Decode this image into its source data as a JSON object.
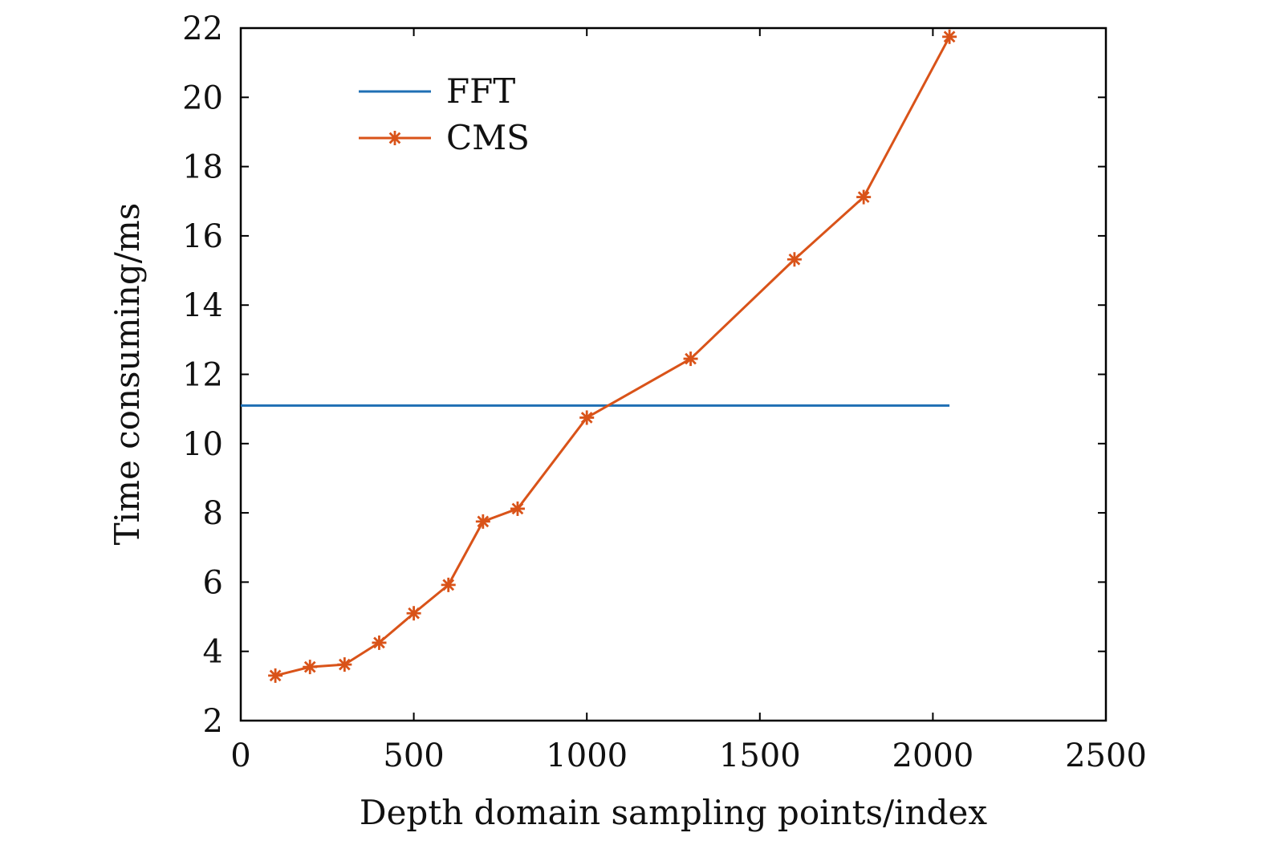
{
  "chart_data": {
    "type": "line",
    "title": "",
    "xlabel": "Depth domain sampling points/index",
    "ylabel": "Time consuming/ms",
    "xlim": [
      0,
      2500
    ],
    "ylim": [
      2,
      22
    ],
    "xticks": [
      0,
      500,
      1000,
      1500,
      2000,
      2500
    ],
    "yticks": [
      2,
      4,
      6,
      8,
      10,
      12,
      14,
      16,
      18,
      20,
      22
    ],
    "xtick_labels": [
      "0",
      "500",
      "1000",
      "1500",
      "2000",
      "2500"
    ],
    "ytick_labels": [
      "2",
      "4",
      "6",
      "8",
      "10",
      "12",
      "14",
      "16",
      "18",
      "20",
      "22"
    ],
    "grid": false,
    "legend_position": "upper-left",
    "series": [
      {
        "name": "FFT",
        "color": "#1f6fb4",
        "marker": "none",
        "x": [
          0,
          2048
        ],
        "y": [
          11.1,
          11.1
        ]
      },
      {
        "name": "CMS",
        "color": "#d95319",
        "marker": "asterisk",
        "x": [
          100,
          200,
          300,
          400,
          500,
          600,
          700,
          800,
          1000,
          1300,
          1600,
          1800,
          2048
        ],
        "y": [
          3.3,
          3.55,
          3.62,
          4.25,
          5.1,
          5.92,
          7.75,
          8.12,
          10.75,
          12.45,
          15.32,
          17.12,
          21.75
        ]
      }
    ]
  }
}
